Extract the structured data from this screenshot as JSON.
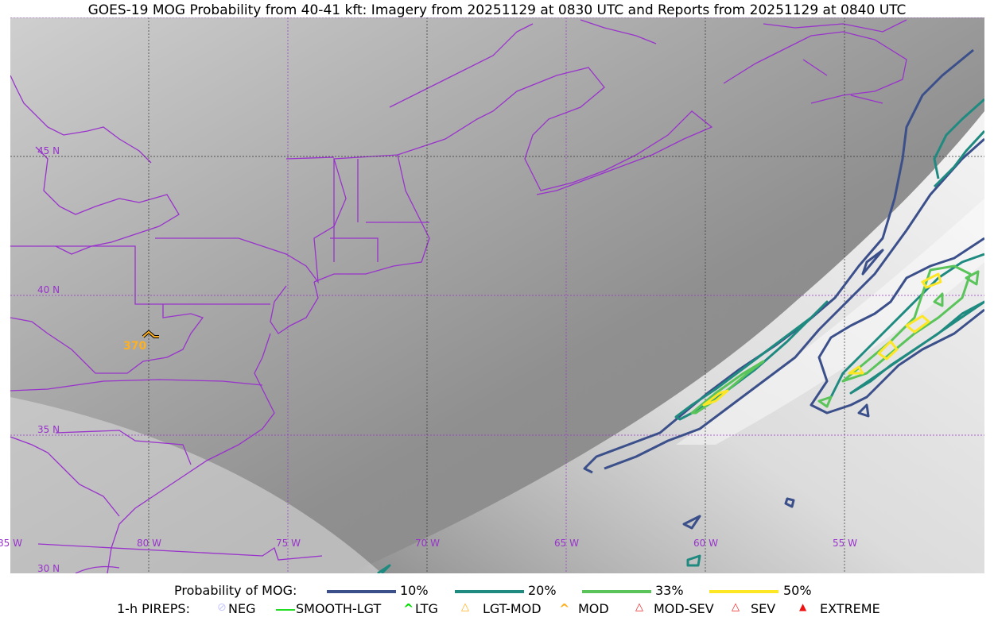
{
  "title": "GOES-19 MOG Probability from 40-41 kft: Imagery from 20251129 at 0830 UTC and Reports from 20251129 at 0840 UTC",
  "map": {
    "projection": "equirectangular",
    "lon_range": [
      "85 W",
      "50 W"
    ],
    "lat_range": [
      "30 N",
      "50 N"
    ],
    "lon_labels": [
      "85 W",
      "80 W",
      "75 W",
      "70 W",
      "65 W",
      "60 W",
      "55 W"
    ],
    "lat_labels": [
      "45 N",
      "40 N",
      "35 N",
      "30 N"
    ],
    "boundary_color": "#9933cc",
    "grid": true
  },
  "pireps_on_map": [
    {
      "type": "LGT-MOD",
      "altitude_label": "370",
      "color": "#ffb020"
    }
  ],
  "legend": {
    "probability_label": "Probability of MOG:",
    "probability_levels": [
      {
        "label": "10%",
        "color": "#3b4f8a"
      },
      {
        "label": "20%",
        "color": "#1f8a80"
      },
      {
        "label": "33%",
        "color": "#5ac45a"
      },
      {
        "label": "50%",
        "color": "#fde725"
      }
    ],
    "pireps_label": "1-h PIREPS:",
    "pirep_types": [
      {
        "label": "NEG",
        "color": "#c8c8ff",
        "icon": "neg-icon"
      },
      {
        "label": "SMOOTH-LGT",
        "color": "#22dd22",
        "icon": "smooth-lgt-icon"
      },
      {
        "label": "LTG",
        "color": "#00dd00",
        "icon": "ltg-icon"
      },
      {
        "label": "LGT-MOD",
        "color": "#ffb020",
        "icon": "lgt-mod-icon"
      },
      {
        "label": "MOD",
        "color": "#ffb020",
        "icon": "mod-icon"
      },
      {
        "label": "MOD-SEV",
        "color": "#ee2222",
        "icon": "mod-sev-icon"
      },
      {
        "label": "SEV",
        "color": "#ee2222",
        "icon": "sev-icon"
      },
      {
        "label": "EXTREME",
        "color": "#ee1111",
        "icon": "extreme-icon"
      }
    ]
  }
}
